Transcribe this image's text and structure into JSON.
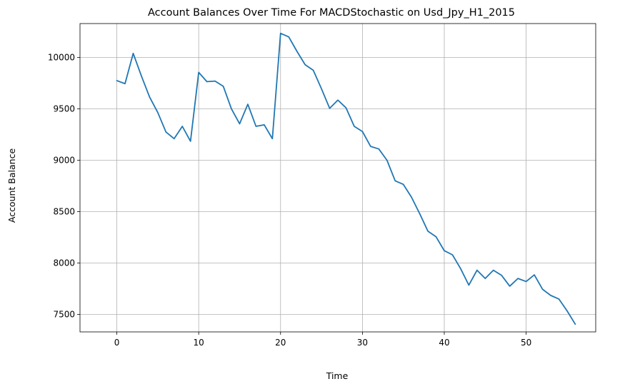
{
  "chart_data": {
    "type": "line",
    "title": "Account Balances Over Time For MACDStochastic on Usd_Jpy_H1_2015",
    "xlabel": "Time",
    "ylabel": "Account Balance",
    "xlim": [
      -4.5,
      58.5
    ],
    "ylim": [
      7330,
      10330
    ],
    "xticks": [
      0,
      10,
      20,
      30,
      40,
      50
    ],
    "yticks": [
      7500,
      8000,
      8500,
      9000,
      9500,
      10000
    ],
    "grid": true,
    "color": "#1f77b4",
    "x": [
      0,
      1,
      2,
      3,
      4,
      5,
      6,
      7,
      8,
      9,
      10,
      11,
      12,
      13,
      14,
      15,
      16,
      17,
      18,
      19,
      20,
      21,
      22,
      23,
      24,
      25,
      26,
      27,
      28,
      29,
      30,
      31,
      32,
      33,
      34,
      35,
      36,
      37,
      38,
      39,
      40,
      41,
      42,
      43,
      44,
      45,
      46,
      47,
      48,
      49,
      50,
      51,
      52,
      53,
      54,
      55,
      56
    ],
    "y": [
      9775,
      9745,
      10040,
      9820,
      9615,
      9465,
      9275,
      9210,
      9330,
      9185,
      9855,
      9765,
      9770,
      9720,
      9500,
      9355,
      9545,
      9330,
      9345,
      9210,
      10235,
      10200,
      10060,
      9930,
      9875,
      9695,
      9505,
      9585,
      9510,
      9330,
      9280,
      9135,
      9110,
      9000,
      8800,
      8765,
      8640,
      8480,
      8310,
      8255,
      8120,
      8080,
      7945,
      7785,
      7930,
      7850,
      7930,
      7880,
      7775,
      7850,
      7820,
      7885,
      7745,
      7685,
      7650,
      7535,
      7405
    ]
  }
}
